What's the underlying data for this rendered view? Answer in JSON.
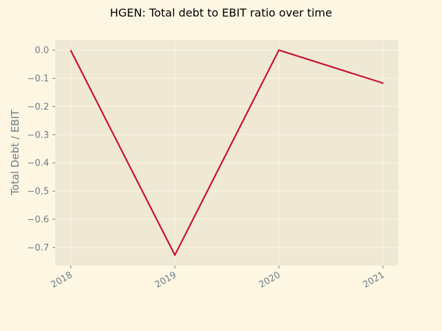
{
  "chart_data": {
    "type": "line",
    "title": "HGEN: Total debt to EBIT ratio over time",
    "xlabel": "",
    "ylabel": "Total Debt / EBIT",
    "x": [
      "2018",
      "2019",
      "2020",
      "2021"
    ],
    "series": [
      {
        "values": [
          -0.002,
          -0.727,
          0.0,
          -0.117
        ]
      }
    ],
    "xlim": [
      2017.85,
      2021.15
    ],
    "ylim": [
      -0.764,
      0.036
    ],
    "yticks": [
      0.0,
      -0.1,
      -0.2,
      -0.3,
      -0.4,
      -0.5,
      -0.6,
      -0.7
    ],
    "ytick_labels": [
      "0.0",
      "−0.1",
      "−0.2",
      "−0.3",
      "−0.4",
      "−0.5",
      "−0.6",
      "−0.7"
    ],
    "grid": true,
    "colors": {
      "page_background": "#fdf6e3",
      "plot_background": "#eee8d5",
      "grid": "#fdf6e3",
      "line": "#c8102e",
      "text": "#6e7d87"
    }
  }
}
